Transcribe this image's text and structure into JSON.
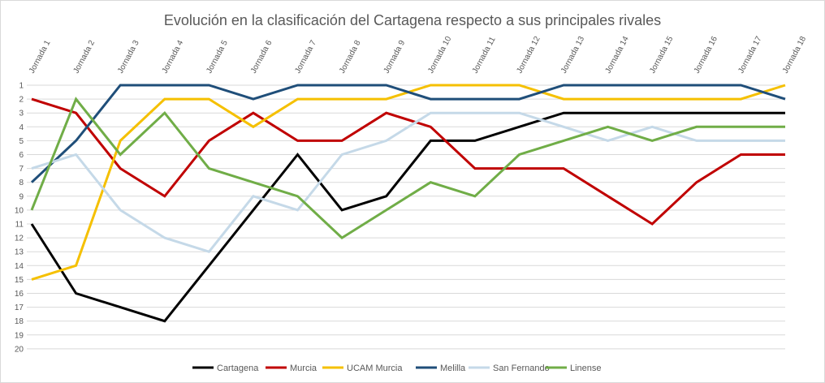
{
  "chart_data": {
    "type": "line",
    "title": "Evolución en la clasificación del Cartagena respecto a sus principales rivales",
    "categories": [
      "Jornada 1",
      "Jornada 2",
      "Jornada 3",
      "Jornada 4",
      "Jornada 5",
      "Jornada 6",
      "Jornada 7",
      "Jornada 8",
      "Jornada 9",
      "Jornada 10",
      "Jornada 11",
      "Jornada 12",
      "Jornada 13",
      "Jornada 14",
      "Jornada 15",
      "Jornada 16",
      "Jornada 17",
      "Jornada 18"
    ],
    "y_ticks": [
      "1",
      "2",
      "3",
      "4",
      "5",
      "6",
      "7",
      "8",
      "9",
      "10",
      "11",
      "12",
      "13",
      "14",
      "15",
      "16",
      "17",
      "18",
      "19",
      "20"
    ],
    "ylim": [
      1,
      20
    ],
    "y_inverted": true,
    "grid": true,
    "legend_position": "bottom",
    "series": [
      {
        "name": "Cartagena",
        "color": "#000000",
        "values": [
          11,
          16,
          17,
          18,
          14,
          10,
          6,
          10,
          9,
          5,
          5,
          4,
          3,
          3,
          3,
          3,
          3,
          3
        ]
      },
      {
        "name": "Murcia",
        "color": "#c00000",
        "values": [
          2,
          3,
          7,
          9,
          5,
          3,
          5,
          5,
          3,
          4,
          7,
          7,
          7,
          9,
          11,
          8,
          6,
          6
        ]
      },
      {
        "name": "UCAM Murcia",
        "color": "#f5c000",
        "values": [
          15,
          14,
          5,
          2,
          2,
          4,
          2,
          2,
          2,
          1,
          1,
          1,
          2,
          2,
          2,
          2,
          2,
          1
        ]
      },
      {
        "name": "Melilla",
        "color": "#1f4e79",
        "values": [
          8,
          5,
          1,
          1,
          1,
          2,
          1,
          1,
          1,
          2,
          2,
          2,
          1,
          1,
          1,
          1,
          1,
          2
        ]
      },
      {
        "name": "San Fernando",
        "color": "#c5d9e8",
        "values": [
          7,
          6,
          10,
          12,
          13,
          9,
          10,
          6,
          5,
          3,
          3,
          3,
          4,
          5,
          4,
          5,
          5,
          5
        ]
      },
      {
        "name": "Linense",
        "color": "#70ad47",
        "values": [
          10,
          2,
          6,
          3,
          7,
          8,
          9,
          12,
          10,
          8,
          9,
          6,
          5,
          4,
          5,
          4,
          4,
          4
        ]
      }
    ]
  }
}
